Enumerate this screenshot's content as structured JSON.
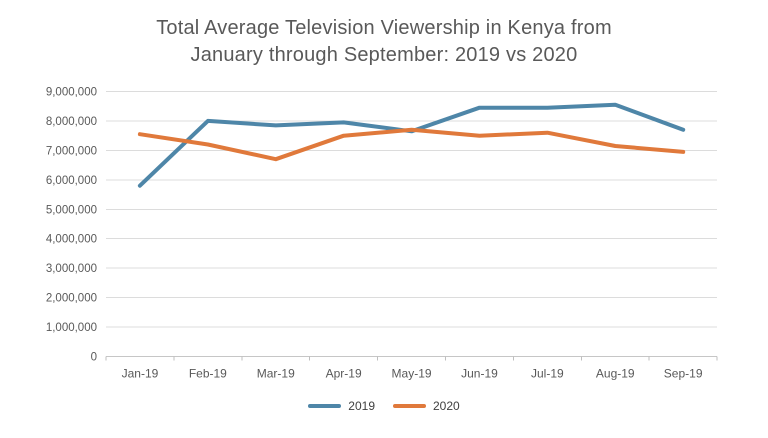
{
  "chart_data": {
    "type": "line",
    "title_lines": [
      "Total Average Television Viewership in Kenya from",
      "January through September: 2019 vs 2020"
    ],
    "categories": [
      "Jan-19",
      "Feb-19",
      "Mar-19",
      "Apr-19",
      "May-19",
      "Jun-19",
      "Jul-19",
      "Aug-19",
      "Sep-19"
    ],
    "series": [
      {
        "name": "2019",
        "color": "#4E86A8",
        "values": [
          5800000,
          8000000,
          7850000,
          7950000,
          7650000,
          8450000,
          8450000,
          8550000,
          7700000
        ]
      },
      {
        "name": "2020",
        "color": "#E0793B",
        "values": [
          7550000,
          7200000,
          6700000,
          7500000,
          7700000,
          7500000,
          7600000,
          7150000,
          6950000
        ]
      }
    ],
    "ylim": [
      0,
      9000000
    ],
    "ytick_step": 1000000,
    "ytick_labels_top_to_bottom": [
      "9,000,000",
      "8,000,000",
      "7,000,000",
      "6,000,000",
      "5,000,000",
      "4,000,000",
      "3,000,000",
      "2,000,000",
      "1,000,000",
      "0"
    ],
    "grid": "horizontal",
    "legend_position": "bottom"
  },
  "colors": {
    "background": "#FFFFFF",
    "title_text": "#595959",
    "axis_label_text": "#595959",
    "legend_text": "#404040",
    "gridline": "#DCDCDC",
    "axis_line": "#C6C6C6",
    "tick_mark": "#BFBFBF"
  }
}
